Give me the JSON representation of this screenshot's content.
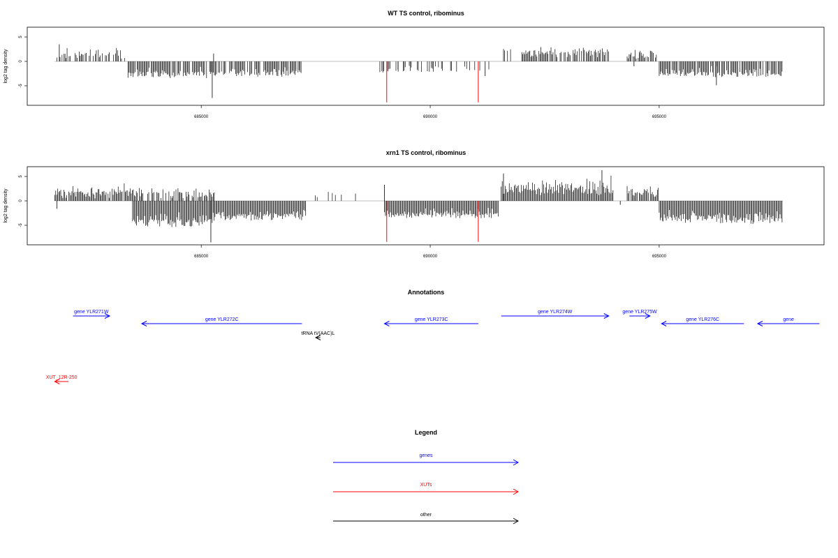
{
  "panels": [
    {
      "title": "WT TS control, ribominus",
      "ylabel": "log2 tag density",
      "x_tick_labels": [
        "685000",
        "690000",
        "695000"
      ],
      "y_tick_labels": [
        "-5",
        "0",
        "5"
      ]
    },
    {
      "title": "xrn1 TS control, ribominus",
      "ylabel": "log2 tag density",
      "x_tick_labels": [
        "685000",
        "690000",
        "695000"
      ],
      "y_tick_labels": [
        "-5",
        "0",
        "5"
      ]
    }
  ],
  "annotations": {
    "title": "Annotations",
    "features": [
      {
        "label": "gene YLR271W",
        "class": "gene",
        "strand": "+",
        "start": 682200,
        "end": 683000
      },
      {
        "label": "gene YLR272C",
        "class": "gene",
        "strand": "-",
        "start": 683700,
        "end": 687200
      },
      {
        "label": "tRNA tV(AAC)L",
        "class": "other",
        "strand": "-",
        "start": 687500,
        "end": 687600
      },
      {
        "label": "gene YLR273C",
        "class": "gene",
        "strand": "-",
        "start": 689000,
        "end": 691050
      },
      {
        "label": "gene YLR274W",
        "class": "gene",
        "strand": "+",
        "start": 691550,
        "end": 693900
      },
      {
        "label": "gene YLR275W",
        "class": "gene",
        "strand": "+",
        "start": 694350,
        "end": 694800
      },
      {
        "label": "gene YLR276C",
        "class": "gene",
        "strand": "-",
        "start": 695050,
        "end": 696850
      },
      {
        "label": "gene",
        "class": "gene",
        "strand": "-",
        "start": 697150,
        "end": 698500
      },
      {
        "label": "XUT_12R-250",
        "class": "xut",
        "strand": "-",
        "start": 681800,
        "end": 682100
      }
    ]
  },
  "legend": {
    "title": "Legend",
    "items": [
      {
        "label": "genes",
        "color": "#0000ff"
      },
      {
        "label": "XUTs",
        "color": "#ff0000"
      },
      {
        "label": "other",
        "color": "#000000"
      }
    ]
  },
  "colors": {
    "signal": "#000000",
    "marker": "#ff0000",
    "gene": "#0000ff",
    "xut": "#ff0000",
    "other": "#000000"
  },
  "chart_data": [
    {
      "type": "bar",
      "title": "WT TS control, ribominus",
      "ylabel": "log2 tag density",
      "xlim": [
        681200,
        698600
      ],
      "ylim": [
        -9,
        7
      ],
      "x_ticks": [
        685000,
        690000,
        695000
      ],
      "y_ticks": [
        -5,
        0,
        5
      ],
      "baseline_span": [
        681800,
        697700
      ],
      "markers": [
        689050,
        691050
      ],
      "segments": [
        {
          "start": 681850,
          "end": 683350,
          "min": 0.5,
          "max": 3.5,
          "seed": 11,
          "density": 0.5
        },
        {
          "start": 683400,
          "end": 685200,
          "min": -3.5,
          "max": -0.8,
          "seed": 12,
          "density": 0.9
        },
        {
          "start": 685200,
          "end": 687200,
          "min": -3.2,
          "max": -0.8,
          "seed": 13,
          "density": 0.8
        },
        {
          "start": 688900,
          "end": 689300,
          "min": -2.5,
          "max": -1.0,
          "seed": 14,
          "density": 0.5
        },
        {
          "start": 689300,
          "end": 691300,
          "min": -2.3,
          "max": -0.6,
          "seed": 15,
          "density": 0.35
        },
        {
          "start": 691600,
          "end": 691800,
          "min": 2.0,
          "max": 3.2,
          "seed": 16,
          "density": 0.5
        },
        {
          "start": 692000,
          "end": 693900,
          "min": 0.8,
          "max": 4.0,
          "seed": 17,
          "density": 0.85
        },
        {
          "start": 694300,
          "end": 694950,
          "min": 0.5,
          "max": 3.0,
          "seed": 18,
          "density": 0.8
        },
        {
          "start": 695000,
          "end": 697700,
          "min": -3.4,
          "max": -0.6,
          "seed": 19,
          "density": 0.9
        }
      ],
      "extra_bars": [
        {
          "x": 681900,
          "y": 3.5
        },
        {
          "x": 685270,
          "y": 1.6
        },
        {
          "x": 685240,
          "y": -7.5
        },
        {
          "x": 696250,
          "y": -4.9
        },
        {
          "x": 691200,
          "y": -3.0
        },
        {
          "x": 694450,
          "y": -1.0
        }
      ]
    },
    {
      "type": "bar",
      "title": "xrn1 TS control, ribominus",
      "ylabel": "log2 tag density",
      "xlim": [
        681200,
        698600
      ],
      "ylim": [
        -9,
        7
      ],
      "x_ticks": [
        685000,
        690000,
        695000
      ],
      "y_ticks": [
        -5,
        0,
        5
      ],
      "baseline_span": [
        681800,
        697700
      ],
      "markers": [
        689050,
        691050
      ],
      "segments": [
        {
          "start": 681800,
          "end": 683700,
          "min": 0.5,
          "max": 4.2,
          "seed": 21,
          "density": 0.95
        },
        {
          "start": 683700,
          "end": 685300,
          "min": 0.5,
          "max": 3.5,
          "seed": 22,
          "density": 0.6
        },
        {
          "start": 683500,
          "end": 685300,
          "min": -5.5,
          "max": -1.5,
          "seed": 23,
          "density": 1.0
        },
        {
          "start": 685300,
          "end": 687300,
          "min": -4.2,
          "max": -1.0,
          "seed": 24,
          "density": 1.0
        },
        {
          "start": 687400,
          "end": 688400,
          "min": 0.6,
          "max": 2.8,
          "seed": 25,
          "density": 0.15
        },
        {
          "start": 689000,
          "end": 691500,
          "min": -3.6,
          "max": -1.0,
          "seed": 26,
          "density": 1.0
        },
        {
          "start": 691550,
          "end": 694000,
          "min": 1.0,
          "max": 5.8,
          "seed": 27,
          "density": 1.0
        },
        {
          "start": 694300,
          "end": 695000,
          "min": 0.8,
          "max": 3.7,
          "seed": 28,
          "density": 0.9
        },
        {
          "start": 695000,
          "end": 697700,
          "min": -4.8,
          "max": -1.2,
          "seed": 29,
          "density": 1.0
        }
      ],
      "extra_bars": [
        {
          "x": 681850,
          "y": -1.6
        },
        {
          "x": 689000,
          "y": 3.3
        },
        {
          "x": 685210,
          "y": -8.5
        },
        {
          "x": 693750,
          "y": 6.3
        },
        {
          "x": 691600,
          "y": 5.6
        },
        {
          "x": 694150,
          "y": -0.8
        }
      ]
    }
  ]
}
